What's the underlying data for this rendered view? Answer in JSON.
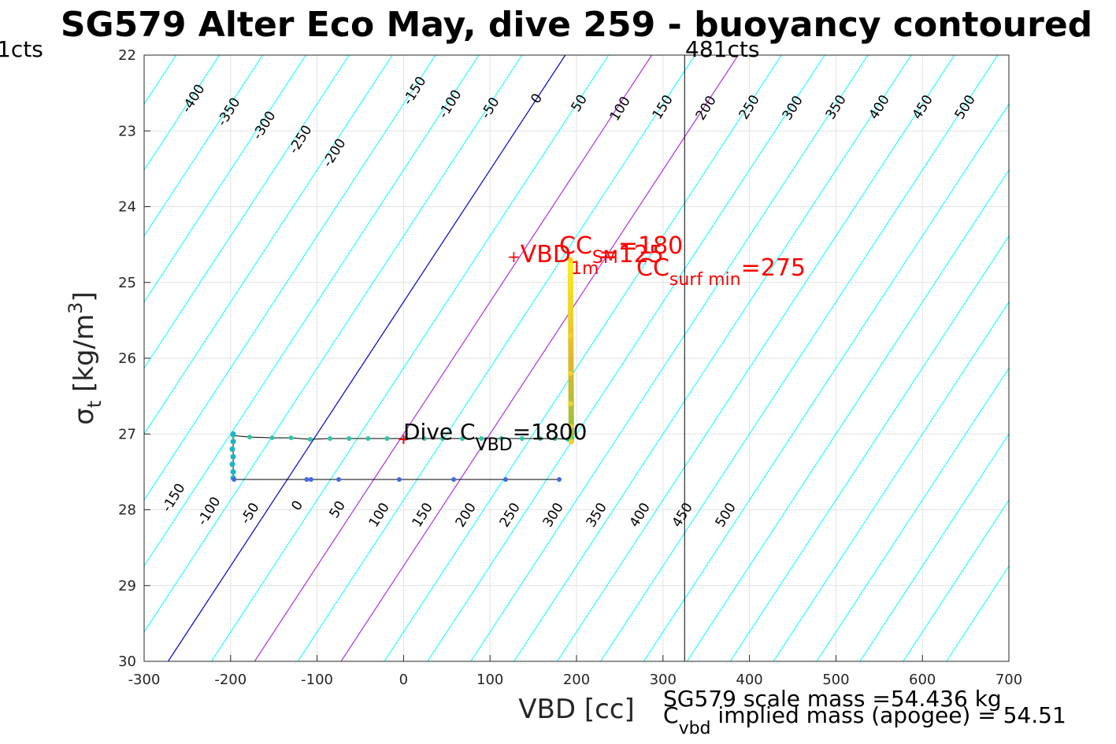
{
  "chart_data": {
    "type": "scatter",
    "title": "SG579 Alter Eco May, dive 259 - buoyancy contoured",
    "xlabel": "VBD [cc]",
    "ylabel_main": "σ",
    "ylabel_sub": "t",
    "ylabel_units": " [kg/m",
    "ylabel_sup": "3",
    "ylabel_close": "]",
    "xlim": [
      -300,
      700
    ],
    "ylim": [
      22,
      30
    ],
    "y_reversed": true,
    "grid": true,
    "x_ticks": [
      -300,
      -200,
      -100,
      0,
      100,
      200,
      300,
      400,
      500,
      600,
      700
    ],
    "y_ticks": [
      22,
      23,
      24,
      25,
      26,
      27,
      28,
      29,
      30
    ],
    "contour_labels_top": [
      "-400",
      "-350",
      "-300",
      "-250",
      "-200",
      "-150",
      "-100",
      "-50",
      "0",
      "50",
      "100",
      "150",
      "200",
      "250",
      "300",
      "350",
      "400",
      "450",
      "500"
    ],
    "contour_labels_bottom": [
      "-150",
      "-100",
      "-50",
      "0",
      "50",
      "100",
      "150",
      "200",
      "250",
      "300",
      "350",
      "400",
      "450",
      "500"
    ],
    "zero_contour_color": "#0000cc",
    "highlight_contour_color": "#b030e0",
    "contour_color": "#00ffff",
    "count_left_label": "1cts",
    "count_right_label": "481cts",
    "count_line_vbd": 325,
    "annotations": {
      "dive_prefix": "Dive C",
      "dive_sub": "VBD",
      "dive_value": "=1800",
      "vbd_1m_prefix": "VBD",
      "vbd_1m_sub": "1m",
      "vbd_1m_value": "=125",
      "cc_sm_prefix": "CC",
      "cc_sm_sub": "SM",
      "cc_sm_value": "=180",
      "cc_surf_prefix": "CC",
      "cc_surf_sub": "surf min",
      "cc_surf_value": "=275",
      "marker_plus": "+"
    },
    "footer": {
      "scale_mass": "SG579 scale mass =54.436 kg",
      "implied_prefix": "C",
      "implied_sub": "vbd",
      "implied_text": " implied mass (apogee) = 54.51"
    },
    "series": [
      {
        "kind": "descent",
        "color": "#2ec7a8",
        "points": [
          [
            -197,
            27.02
          ],
          [
            -178,
            27.04
          ],
          [
            -152,
            27.05
          ],
          [
            -130,
            27.05
          ],
          [
            -108,
            27.07
          ],
          [
            -85,
            27.06
          ],
          [
            -63,
            27.06
          ],
          [
            -41,
            27.06
          ],
          [
            -19,
            27.06
          ],
          [
            2,
            27.06
          ],
          [
            24,
            27.06
          ],
          [
            45,
            27.06
          ],
          [
            68,
            27.06
          ],
          [
            90,
            27.06
          ],
          [
            113,
            27.06
          ],
          [
            137,
            27.06
          ],
          [
            158,
            27.06
          ],
          [
            175,
            27.06
          ],
          [
            190,
            27.07
          ]
        ]
      },
      {
        "kind": "bottom",
        "color": "#1fb4c8",
        "points": [
          [
            -197,
            27.0
          ],
          [
            -197,
            27.1
          ],
          [
            -198,
            27.2
          ],
          [
            -197,
            27.3
          ],
          [
            -198,
            27.4
          ],
          [
            -197,
            27.5
          ],
          [
            -197,
            27.58
          ]
        ]
      },
      {
        "kind": "ascent",
        "color": "#4169e1",
        "points": [
          [
            -196,
            27.6
          ],
          [
            -112,
            27.6
          ],
          [
            -107,
            27.6
          ],
          [
            -75,
            27.6
          ],
          [
            -5,
            27.6
          ],
          [
            58,
            27.6
          ],
          [
            118,
            27.6
          ],
          [
            180,
            27.6
          ]
        ]
      },
      {
        "kind": "surface",
        "color": "#f2d22e",
        "points": [
          [
            193,
            24.7
          ],
          [
            193,
            25.2
          ],
          [
            193,
            25.7
          ],
          [
            193,
            26.2
          ],
          [
            193,
            26.6
          ],
          [
            194,
            26.9
          ],
          [
            194,
            27.1
          ]
        ]
      }
    ]
  }
}
